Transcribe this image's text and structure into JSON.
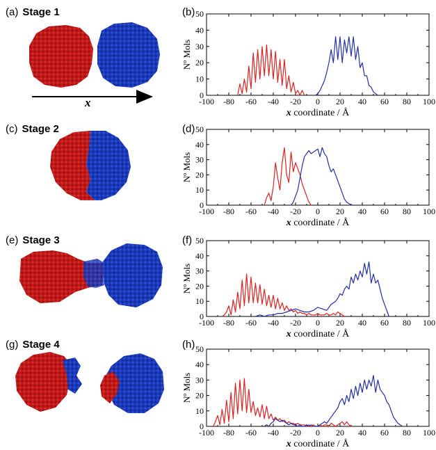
{
  "stages": [
    {
      "tag": "(a)",
      "name": "Stage 1",
      "plot_tag": "(b)"
    },
    {
      "tag": "(c)",
      "name": "Stage 2",
      "plot_tag": "(d)"
    },
    {
      "tag": "(e)",
      "name": "Stage 3",
      "plot_tag": "(f)"
    },
    {
      "tag": "(g)",
      "name": "Stage 4",
      "plot_tag": "(h)"
    }
  ],
  "arrow_label": "x",
  "colors": {
    "red": "#e02020",
    "blue": "#1f2fa8",
    "red_cluster": "#c41a1a",
    "blue_cluster": "#1c3cbf"
  },
  "chart_data": [
    {
      "type": "line",
      "xlabel": "x coordinate / Å",
      "ylabel": "Nº Mols",
      "xlim": [
        -100,
        100
      ],
      "ylim": [
        0,
        50
      ],
      "xticks": [
        -100,
        -80,
        -60,
        -40,
        -20,
        0,
        20,
        40,
        60,
        80,
        100
      ],
      "yticks": [
        0,
        10,
        20,
        30,
        40,
        50
      ],
      "series": [
        {
          "color": "red",
          "x": [
            -72,
            -70,
            -68,
            -66,
            -64,
            -62,
            -60,
            -58,
            -56,
            -54,
            -52,
            -50,
            -48,
            -46,
            -44,
            -42,
            -40,
            -38,
            -36,
            -34,
            -32,
            -30,
            -28,
            -26,
            -24,
            -22,
            -20,
            -18,
            -16,
            -14,
            -12
          ],
          "y": [
            0,
            7,
            1,
            10,
            2,
            18,
            4,
            26,
            8,
            28,
            10,
            30,
            12,
            31,
            12,
            28,
            10,
            27,
            8,
            22,
            6,
            22,
            4,
            12,
            2,
            8,
            1,
            3,
            0,
            3,
            0
          ]
        },
        {
          "color": "blue",
          "x": [
            -2,
            0,
            2,
            4,
            6,
            8,
            10,
            12,
            14,
            16,
            18,
            20,
            22,
            24,
            26,
            28,
            30,
            32,
            34,
            36,
            38,
            40,
            42,
            44,
            46,
            48,
            50,
            52,
            54
          ],
          "y": [
            0,
            1,
            3,
            6,
            9,
            14,
            20,
            28,
            20,
            36,
            22,
            36,
            20,
            34,
            26,
            36,
            24,
            36,
            22,
            30,
            17,
            20,
            12,
            12,
            6,
            5,
            2,
            1,
            0
          ]
        }
      ]
    },
    {
      "type": "line",
      "xlabel": "x coordinate / Å",
      "ylabel": "Nº Mols",
      "xlim": [
        -100,
        100
      ],
      "ylim": [
        0,
        50
      ],
      "xticks": [
        -100,
        -80,
        -60,
        -40,
        -20,
        0,
        20,
        40,
        60,
        80,
        100
      ],
      "yticks": [
        0,
        10,
        20,
        30,
        40,
        50
      ],
      "series": [
        {
          "color": "red",
          "x": [
            -48,
            -46,
            -44,
            -42,
            -40,
            -38,
            -36,
            -34,
            -32,
            -30,
            -28,
            -26,
            -24,
            -22,
            -20,
            -18,
            -16,
            -14,
            -12,
            -10,
            -8,
            -6
          ],
          "y": [
            0,
            5,
            8,
            3,
            12,
            28,
            18,
            10,
            28,
            38,
            20,
            15,
            35,
            22,
            28,
            24,
            20,
            14,
            10,
            6,
            2,
            0
          ]
        },
        {
          "color": "blue",
          "x": [
            -24,
            -22,
            -20,
            -18,
            -16,
            -14,
            -12,
            -10,
            -8,
            -6,
            -4,
            -2,
            0,
            2,
            4,
            6,
            8,
            10,
            12,
            14,
            16,
            18,
            20,
            22,
            24,
            26,
            28,
            30
          ],
          "y": [
            0,
            2,
            6,
            10,
            18,
            26,
            32,
            34,
            36,
            34,
            35,
            36,
            37,
            32,
            38,
            34,
            32,
            26,
            22,
            24,
            20,
            16,
            12,
            8,
            4,
            2,
            1,
            0
          ]
        }
      ]
    },
    {
      "type": "line",
      "xlabel": "x coordinate /  Å",
      "ylabel": "Nº Mols",
      "xlim": [
        -100,
        100
      ],
      "ylim": [
        0,
        50
      ],
      "xticks": [
        -100,
        -80,
        -60,
        -40,
        -20,
        0,
        20,
        40,
        60,
        80,
        100
      ],
      "yticks": [
        0,
        10,
        20,
        30,
        40,
        50
      ],
      "series": [
        {
          "color": "red",
          "x": [
            -86,
            -84,
            -82,
            -80,
            -78,
            -76,
            -74,
            -72,
            -70,
            -68,
            -66,
            -64,
            -62,
            -60,
            -58,
            -56,
            -54,
            -52,
            -50,
            -48,
            -46,
            -44,
            -42,
            -40,
            -38,
            -36,
            -34,
            -32,
            -30,
            -28,
            -26,
            -24,
            -22,
            -20,
            -18,
            -16,
            -14,
            -12,
            -10,
            -8,
            -6,
            -4,
            -2,
            0,
            2,
            4,
            6,
            8,
            10,
            12,
            14,
            16,
            18,
            20,
            22,
            24
          ],
          "y": [
            0,
            1,
            3,
            7,
            1,
            11,
            3,
            16,
            5,
            24,
            7,
            28,
            9,
            26,
            9,
            22,
            9,
            21,
            8,
            18,
            7,
            14,
            6,
            14,
            5,
            12,
            5,
            9,
            4,
            7,
            4,
            5,
            3,
            4,
            2,
            3,
            2,
            2,
            1,
            2,
            1,
            1,
            1,
            2,
            1,
            1,
            1,
            2,
            1,
            1,
            2,
            1,
            3,
            2,
            1,
            0
          ]
        },
        {
          "color": "blue",
          "x": [
            -56,
            -52,
            -48,
            -44,
            -40,
            -36,
            -32,
            -28,
            -24,
            -20,
            -16,
            -12,
            -8,
            -4,
            0,
            4,
            8,
            12,
            16,
            18,
            20,
            22,
            24,
            26,
            28,
            30,
            32,
            34,
            36,
            38,
            40,
            42,
            44,
            46,
            48,
            50,
            52,
            54,
            56,
            58,
            60,
            62,
            64
          ],
          "y": [
            0,
            1,
            0,
            1,
            1,
            2,
            2,
            3,
            4,
            5,
            4,
            3,
            3,
            4,
            6,
            5,
            4,
            8,
            10,
            12,
            15,
            14,
            18,
            20,
            18,
            26,
            22,
            28,
            24,
            30,
            26,
            35,
            28,
            36,
            22,
            28,
            22,
            24,
            18,
            12,
            8,
            4,
            0
          ]
        }
      ]
    },
    {
      "type": "line",
      "xlabel": "x coordinate /  Å",
      "ylabel": "Nº Mols",
      "xlim": [
        -100,
        100
      ],
      "ylim": [
        0,
        50
      ],
      "xticks": [
        -100,
        -80,
        -60,
        -40,
        -20,
        0,
        20,
        40,
        60,
        80,
        100
      ],
      "yticks": [
        0,
        10,
        20,
        30,
        40,
        50
      ],
      "series": [
        {
          "color": "red",
          "x": [
            -94,
            -92,
            -90,
            -88,
            -86,
            -84,
            -82,
            -80,
            -78,
            -76,
            -74,
            -72,
            -70,
            -68,
            -66,
            -64,
            -62,
            -60,
            -58,
            -56,
            -54,
            -52,
            -50,
            -48,
            -46,
            -44,
            -42,
            -40,
            -38,
            -36,
            -34,
            -32,
            -30,
            -28,
            -26,
            -24,
            -22,
            -20,
            -18,
            -16,
            -14,
            -12,
            -10,
            -8,
            -6,
            -4,
            -2,
            0,
            2,
            4,
            6,
            8,
            10,
            12,
            14,
            16,
            18,
            20,
            22,
            24,
            26,
            28,
            30
          ],
          "y": [
            0,
            3,
            7,
            1,
            11,
            2,
            17,
            3,
            22,
            5,
            28,
            8,
            30,
            10,
            31,
            9,
            24,
            9,
            16,
            7,
            12,
            6,
            14,
            5,
            13,
            5,
            8,
            4,
            6,
            4,
            5,
            3,
            4,
            2,
            3,
            2,
            2,
            1,
            2,
            1,
            1,
            1,
            0,
            1,
            0,
            1,
            0,
            0,
            1,
            0,
            1,
            1,
            0,
            2,
            1,
            0,
            1,
            2,
            3,
            1,
            3,
            1,
            0
          ]
        },
        {
          "color": "blue",
          "x": [
            -48,
            -46,
            -44,
            -42,
            -40,
            -38,
            -36,
            -34,
            -32,
            -30,
            -28,
            -26,
            -24,
            -22,
            -20,
            -18,
            -16,
            -14,
            -12,
            -10,
            -8,
            -6,
            -4,
            -2,
            0,
            2,
            4,
            6,
            8,
            10,
            12,
            14,
            16,
            18,
            20,
            22,
            24,
            26,
            28,
            30,
            32,
            34,
            36,
            38,
            40,
            42,
            44,
            46,
            48,
            50,
            52,
            54,
            56,
            58,
            60,
            62,
            64,
            66,
            68,
            70,
            72,
            74,
            76
          ],
          "y": [
            0,
            1,
            0,
            2,
            3,
            5,
            4,
            3,
            4,
            3,
            2,
            1,
            2,
            1,
            1,
            0,
            1,
            0,
            0,
            1,
            0,
            1,
            0,
            0,
            0,
            1,
            2,
            3,
            2,
            4,
            6,
            8,
            10,
            12,
            16,
            18,
            14,
            20,
            16,
            24,
            18,
            26,
            20,
            28,
            22,
            30,
            24,
            30,
            26,
            33,
            22,
            30,
            24,
            22,
            20,
            16,
            14,
            10,
            6,
            4,
            2,
            1,
            0
          ]
        }
      ]
    }
  ]
}
